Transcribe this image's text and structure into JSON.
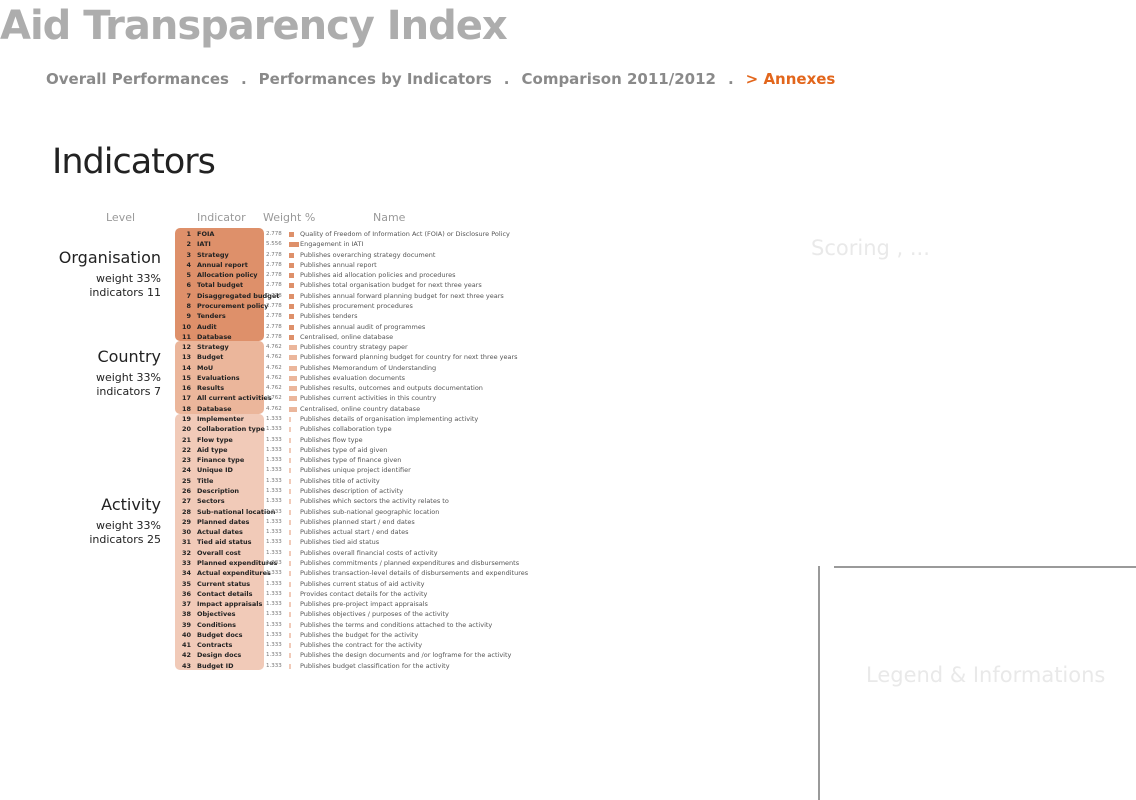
{
  "app": {
    "title": "Aid Transparency Index"
  },
  "nav": {
    "items": [
      {
        "label": "Overall Performances",
        "active": false
      },
      {
        "label": "Performances by Indicators",
        "active": false
      },
      {
        "label": "Comparison 2011/2012",
        "active": false
      },
      {
        "label": "> Annexes",
        "active": true
      }
    ],
    "separator": "."
  },
  "section": {
    "title": "Indicators"
  },
  "table": {
    "headers": {
      "level": "Level",
      "indicator": "Indicator",
      "weight": "Weight %",
      "name": "Name"
    },
    "levels": [
      {
        "name": "Organisation",
        "weight": "weight 33%",
        "indicators": "indicators 11",
        "color": "#de906a"
      },
      {
        "name": "Country",
        "weight": "weight 33%",
        "indicators": "indicators 7",
        "color": "#ebb69b"
      },
      {
        "name": "Activity",
        "weight": "weight 33%",
        "indicators": "indicators 25",
        "color": "#f1cab8"
      }
    ],
    "rows": [
      {
        "id": "1",
        "code": "FOIA",
        "weight": "2.778",
        "weight_value": 2.778,
        "level": 0,
        "name": "Quality of Freedom of Information Act (FOIA) or Disclosure Policy"
      },
      {
        "id": "2",
        "code": "IATI",
        "weight": "5.556",
        "weight_value": 5.556,
        "level": 0,
        "name": "Engagement in IATI"
      },
      {
        "id": "3",
        "code": "Strategy",
        "weight": "2.778",
        "weight_value": 2.778,
        "level": 0,
        "name": "Publishes overarching strategy document"
      },
      {
        "id": "4",
        "code": "Annual report",
        "weight": "2.778",
        "weight_value": 2.778,
        "level": 0,
        "name": "Publishes annual report"
      },
      {
        "id": "5",
        "code": "Allocation policy",
        "weight": "2.778",
        "weight_value": 2.778,
        "level": 0,
        "name": "Publishes aid allocation policies and procedures"
      },
      {
        "id": "6",
        "code": "Total budget",
        "weight": "2.778",
        "weight_value": 2.778,
        "level": 0,
        "name": "Publishes total organisation budget for next three years"
      },
      {
        "id": "7",
        "code": "Disaggregated budget",
        "weight": "2.778",
        "weight_value": 2.778,
        "level": 0,
        "name": "Publishes annual forward planning budget for next three years"
      },
      {
        "id": "8",
        "code": "Procurement policy",
        "weight": "2.778",
        "weight_value": 2.778,
        "level": 0,
        "name": "Publishes procurement procedures"
      },
      {
        "id": "9",
        "code": "Tenders",
        "weight": "2.778",
        "weight_value": 2.778,
        "level": 0,
        "name": "Publishes tenders"
      },
      {
        "id": "10",
        "code": "Audit",
        "weight": "2.778",
        "weight_value": 2.778,
        "level": 0,
        "name": "Publishes annual audit of programmes"
      },
      {
        "id": "11",
        "code": "Database",
        "weight": "2.778",
        "weight_value": 2.778,
        "level": 0,
        "name": "Centralised, online database"
      },
      {
        "id": "12",
        "code": "Strategy",
        "weight": "4.762",
        "weight_value": 4.762,
        "level": 1,
        "name": "Publishes country strategy paper"
      },
      {
        "id": "13",
        "code": "Budget",
        "weight": "4.762",
        "weight_value": 4.762,
        "level": 1,
        "name": "Publishes forward planning budget for country for next three years"
      },
      {
        "id": "14",
        "code": "MoU",
        "weight": "4.762",
        "weight_value": 4.762,
        "level": 1,
        "name": "Publishes Memorandum of Understanding"
      },
      {
        "id": "15",
        "code": "Evaluations",
        "weight": "4.762",
        "weight_value": 4.762,
        "level": 1,
        "name": "Publishes evaluation documents"
      },
      {
        "id": "16",
        "code": "Results",
        "weight": "4.762",
        "weight_value": 4.762,
        "level": 1,
        "name": "Publishes results, outcomes and outputs documentation"
      },
      {
        "id": "17",
        "code": "All current activities",
        "weight": "4.762",
        "weight_value": 4.762,
        "level": 1,
        "name": "Publishes current activities in this country"
      },
      {
        "id": "18",
        "code": "Database",
        "weight": "4.762",
        "weight_value": 4.762,
        "level": 1,
        "name": "Centralised, online country database"
      },
      {
        "id": "19",
        "code": "Implementer",
        "weight": "1.333",
        "weight_value": 1.333,
        "level": 2,
        "name": "Publishes details of organisation implementing activity"
      },
      {
        "id": "20",
        "code": "Collaboration type",
        "weight": "1.333",
        "weight_value": 1.333,
        "level": 2,
        "name": "Publishes collaboration type"
      },
      {
        "id": "21",
        "code": "Flow type",
        "weight": "1.333",
        "weight_value": 1.333,
        "level": 2,
        "name": "Publishes flow type"
      },
      {
        "id": "22",
        "code": "Aid type",
        "weight": "1.333",
        "weight_value": 1.333,
        "level": 2,
        "name": "Publishes type of aid given"
      },
      {
        "id": "23",
        "code": "Finance type",
        "weight": "1.333",
        "weight_value": 1.333,
        "level": 2,
        "name": "Publishes type of finance given"
      },
      {
        "id": "24",
        "code": "Unique ID",
        "weight": "1.333",
        "weight_value": 1.333,
        "level": 2,
        "name": "Publishes unique project identifier"
      },
      {
        "id": "25",
        "code": "Title",
        "weight": "1.333",
        "weight_value": 1.333,
        "level": 2,
        "name": "Publishes title of activity"
      },
      {
        "id": "26",
        "code": "Description",
        "weight": "1.333",
        "weight_value": 1.333,
        "level": 2,
        "name": "Publishes description of activity"
      },
      {
        "id": "27",
        "code": "Sectors",
        "weight": "1.333",
        "weight_value": 1.333,
        "level": 2,
        "name": "Publishes which sectors the activity relates to"
      },
      {
        "id": "28",
        "code": "Sub-national location",
        "weight": "1.333",
        "weight_value": 1.333,
        "level": 2,
        "name": "Publishes sub-national geographic location"
      },
      {
        "id": "29",
        "code": "Planned dates",
        "weight": "1.333",
        "weight_value": 1.333,
        "level": 2,
        "name": "Publishes planned start / end dates"
      },
      {
        "id": "30",
        "code": "Actual dates",
        "weight": "1.333",
        "weight_value": 1.333,
        "level": 2,
        "name": "Publishes actual start / end dates"
      },
      {
        "id": "31",
        "code": "Tied aid status",
        "weight": "1.333",
        "weight_value": 1.333,
        "level": 2,
        "name": "Publishes tied aid status"
      },
      {
        "id": "32",
        "code": "Overall cost",
        "weight": "1.333",
        "weight_value": 1.333,
        "level": 2,
        "name": "Publishes overall financial costs of activity"
      },
      {
        "id": "33",
        "code": "Planned expenditures",
        "weight": "1.333",
        "weight_value": 1.333,
        "level": 2,
        "name": "Publishes commitments / planned expenditures and disbursements"
      },
      {
        "id": "34",
        "code": "Actual expenditures",
        "weight": "1.333",
        "weight_value": 1.333,
        "level": 2,
        "name": "Publishes transaction-level details of disbursements and expenditures"
      },
      {
        "id": "35",
        "code": "Current status",
        "weight": "1.333",
        "weight_value": 1.333,
        "level": 2,
        "name": "Publishes current status of aid activity"
      },
      {
        "id": "36",
        "code": "Contact details",
        "weight": "1.333",
        "weight_value": 1.333,
        "level": 2,
        "name": "Provides contact details for the activity"
      },
      {
        "id": "37",
        "code": "Impact appraisals",
        "weight": "1.333",
        "weight_value": 1.333,
        "level": 2,
        "name": "Publishes pre-project impact appraisals"
      },
      {
        "id": "38",
        "code": "Objectives",
        "weight": "1.333",
        "weight_value": 1.333,
        "level": 2,
        "name": "Publishes objectives / purposes of the activity"
      },
      {
        "id": "39",
        "code": "Conditions",
        "weight": "1.333",
        "weight_value": 1.333,
        "level": 2,
        "name": "Publishes the terms and conditions attached to the activity"
      },
      {
        "id": "40",
        "code": "Budget docs",
        "weight": "1.333",
        "weight_value": 1.333,
        "level": 2,
        "name": "Publishes the budget for the activity"
      },
      {
        "id": "41",
        "code": "Contracts",
        "weight": "1.333",
        "weight_value": 1.333,
        "level": 2,
        "name": "Publishes the contract for the activity"
      },
      {
        "id": "42",
        "code": "Design docs",
        "weight": "1.333",
        "weight_value": 1.333,
        "level": 2,
        "name": "Publishes the design documents and /or logframe for the activity"
      },
      {
        "id": "43",
        "code": "Budget ID",
        "weight": "1.333",
        "weight_value": 1.333,
        "level": 2,
        "name": "Publishes budget classification for the activity"
      }
    ]
  },
  "panels": {
    "scoring": {
      "title": "Scoring , ..."
    },
    "legend": {
      "title": "Legend & Informations"
    }
  }
}
